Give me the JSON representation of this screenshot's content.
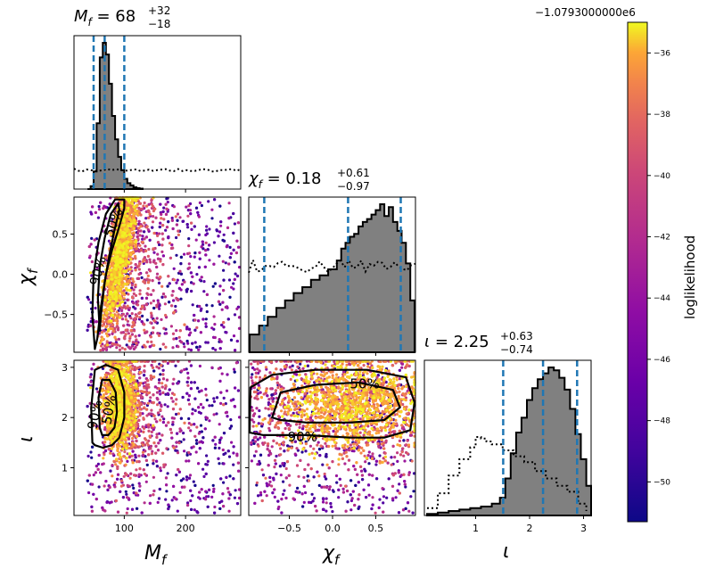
{
  "figure": {
    "colorbar": {
      "label": "loglikelihood",
      "offset": "−1.0793000000e6",
      "range": [
        -51.3,
        -35.0
      ],
      "ticks": [
        -50,
        -48,
        -46,
        -44,
        -42,
        -40,
        -38,
        -36
      ],
      "tick_labels": [
        "−50",
        "−48",
        "−46",
        "−44",
        "−42",
        "−40",
        "−38",
        "−36"
      ],
      "colormap": "plasma"
    },
    "titles": {
      "mf": {
        "prefix": "M",
        "sub": "f",
        "value": " = 68",
        "sup": "+32",
        "inf": "−18"
      },
      "chi": {
        "prefix": "χ",
        "sub": "f",
        "value": " = 0.18",
        "sup": "+0.61",
        "inf": "−0.97"
      },
      "iota": {
        "prefix": "ι",
        "sub": "",
        "value": " = 2.25",
        "sup": "+0.63",
        "inf": "−0.74"
      }
    },
    "axis_labels": {
      "mf": {
        "main": "M",
        "sub": "f"
      },
      "chi": {
        "main": "χ",
        "sub": "f"
      },
      "iota": {
        "main": "ι",
        "sub": ""
      }
    },
    "contour_labels": {
      "inner": "50%",
      "outer": "90%"
    }
  },
  "chart_data": {
    "type": "scatter",
    "subtype": "corner-plot",
    "parameters": [
      "M_f",
      "chi_f",
      "iota"
    ],
    "ranges": {
      "mf": [
        18,
        290
      ],
      "chi": [
        -0.97,
        0.96
      ],
      "iota": [
        0.05,
        3.14
      ]
    },
    "ticks": {
      "mf": {
        "values": [
          100,
          200
        ],
        "labels": [
          "100",
          "200"
        ]
      },
      "chi": {
        "values": [
          -0.5,
          0.0,
          0.5
        ],
        "labels": [
          "−0.5",
          "0.0",
          "0.5"
        ]
      },
      "iota": {
        "values": [
          1,
          2,
          3
        ],
        "labels": [
          "1",
          "2",
          "3"
        ]
      }
    },
    "marginals": {
      "mf": {
        "credible_lines": [
          50,
          68,
          100
        ],
        "posterior": {
          "x": [
            40,
            45,
            50,
            55,
            60,
            65,
            70,
            75,
            80,
            85,
            90,
            95,
            100,
            105,
            110,
            115,
            120,
            125,
            130
          ],
          "density": [
            0,
            0.02,
            0.12,
            0.45,
            0.9,
            1.0,
            0.92,
            0.72,
            0.5,
            0.34,
            0.22,
            0.13,
            0.07,
            0.04,
            0.025,
            0.012,
            0.006,
            0.003,
            0
          ]
        },
        "prior_level": 0.13
      },
      "chi": {
        "credible_lines": [
          -0.79,
          0.18,
          0.79
        ],
        "posterior": {
          "x": [
            -0.96,
            -0.85,
            -0.75,
            -0.65,
            -0.55,
            -0.45,
            -0.35,
            -0.25,
            -0.15,
            -0.05,
            0.05,
            0.1,
            0.15,
            0.2,
            0.25,
            0.3,
            0.35,
            0.4,
            0.45,
            0.5,
            0.55,
            0.6,
            0.65,
            0.7,
            0.75,
            0.8,
            0.85,
            0.9,
            0.95
          ],
          "density": [
            0.12,
            0.18,
            0.24,
            0.3,
            0.35,
            0.4,
            0.44,
            0.49,
            0.52,
            0.56,
            0.62,
            0.7,
            0.74,
            0.78,
            0.8,
            0.85,
            0.88,
            0.9,
            0.93,
            0.96,
            1.0,
            0.92,
            0.98,
            0.88,
            0.82,
            0.74,
            0.6,
            0.35,
            0.15
          ]
        },
        "prior_level": 0.58
      },
      "iota": {
        "credible_lines": [
          1.51,
          2.25,
          2.88
        ],
        "posterior": {
          "x": [
            0.1,
            0.3,
            0.5,
            0.7,
            0.9,
            1.1,
            1.3,
            1.45,
            1.55,
            1.65,
            1.75,
            1.85,
            1.95,
            2.05,
            2.15,
            2.25,
            2.35,
            2.45,
            2.55,
            2.65,
            2.75,
            2.85,
            2.95,
            3.05,
            3.14
          ],
          "density": [
            0.01,
            0.02,
            0.03,
            0.04,
            0.05,
            0.06,
            0.08,
            0.12,
            0.25,
            0.42,
            0.56,
            0.66,
            0.78,
            0.86,
            0.92,
            0.96,
            1.0,
            0.98,
            0.93,
            0.85,
            0.72,
            0.55,
            0.38,
            0.2,
            0.08
          ]
        },
        "prior": {
          "x": [
            0.1,
            0.3,
            0.5,
            0.7,
            0.9,
            1.0,
            1.1,
            1.2,
            1.3,
            1.5,
            1.7,
            1.9,
            2.1,
            2.3,
            2.5,
            2.7,
            2.9,
            3.05
          ],
          "density": [
            0.05,
            0.15,
            0.27,
            0.38,
            0.46,
            0.53,
            0.52,
            0.5,
            0.48,
            0.44,
            0.4,
            0.36,
            0.3,
            0.25,
            0.2,
            0.16,
            0.08,
            0.03
          ]
        }
      }
    },
    "joint": {
      "mf_chi": {
        "contour_90": {
          "mf": [
            52,
            48,
            50,
            58,
            70,
            85,
            100,
            100,
            92,
            80,
            70,
            62,
            56,
            52
          ],
          "chi": [
            -0.93,
            -0.5,
            0.0,
            0.4,
            0.75,
            0.93,
            0.93,
            0.82,
            0.6,
            0.3,
            0.0,
            -0.4,
            -0.8,
            -0.93
          ]
        },
        "contour_50": {
          "mf": [
            60,
            57,
            60,
            68,
            78,
            90,
            92,
            84,
            76,
            68,
            62,
            60
          ],
          "chi": [
            -0.7,
            -0.3,
            0.1,
            0.45,
            0.75,
            0.88,
            0.8,
            0.55,
            0.25,
            -0.1,
            -0.5,
            -0.7
          ]
        }
      },
      "mf_iota": {
        "contour_90": {
          "mf": [
            48,
            46,
            52,
            70,
            90,
            100,
            100,
            92,
            80,
            65,
            52,
            48
          ],
          "iota": [
            1.5,
            2.2,
            2.95,
            3.05,
            2.95,
            2.5,
            2.0,
            1.6,
            1.45,
            1.4,
            1.45,
            1.5
          ]
        },
        "contour_50": {
          "mf": [
            60,
            58,
            64,
            76,
            86,
            88,
            84,
            74,
            64,
            60
          ],
          "iota": [
            1.8,
            2.4,
            2.75,
            2.75,
            2.5,
            2.1,
            1.8,
            1.65,
            1.65,
            1.8
          ]
        }
      },
      "chi_iota": {
        "contour_90": {
          "chi": [
            -0.96,
            -0.95,
            -0.7,
            -0.2,
            0.4,
            0.85,
            0.95,
            0.9,
            0.6,
            0.2,
            -0.3,
            -0.8,
            -0.96
          ],
          "iota": [
            1.7,
            2.6,
            2.85,
            2.95,
            2.95,
            2.8,
            2.3,
            1.75,
            1.6,
            1.6,
            1.65,
            1.65,
            1.7
          ]
        },
        "contour_50": {
          "chi": [
            -0.7,
            -0.6,
            -0.2,
            0.3,
            0.7,
            0.78,
            0.6,
            0.2,
            -0.3,
            -0.6,
            -0.7
          ],
          "iota": [
            2.0,
            2.5,
            2.65,
            2.7,
            2.55,
            2.2,
            1.95,
            1.9,
            1.9,
            1.95,
            2.0
          ]
        }
      }
    }
  }
}
